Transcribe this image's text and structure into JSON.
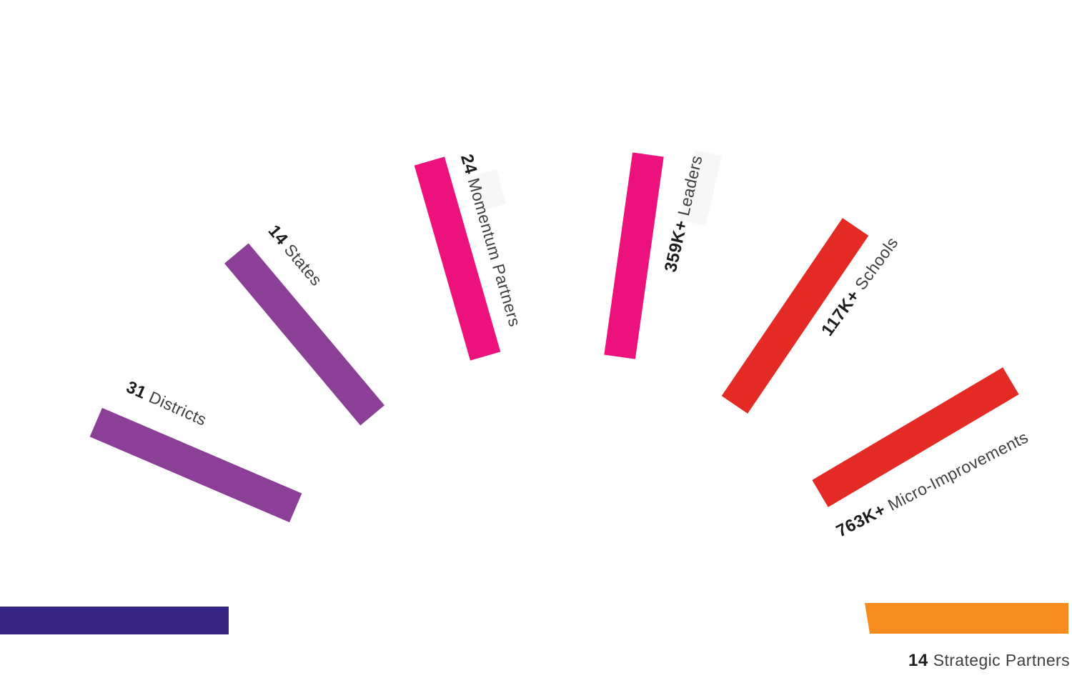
{
  "page": {
    "background": "#ffffff"
  },
  "chart_data": {
    "type": "bar",
    "layout": "radial-fan",
    "legend": "none",
    "axes": "none",
    "categories": [
      "",
      "Districts",
      "States",
      "Momentum Partners",
      "Leaders",
      "Schools",
      "Micro-Improvements",
      "Strategic Partners"
    ],
    "values": [
      "",
      "31",
      "14",
      "24",
      "359K+",
      "117K+",
      "763K+",
      "14"
    ],
    "colors": [
      "#362482",
      "#8C3F97",
      "#8C3F97",
      "#EC117D",
      "#EC117D",
      "#E32A25",
      "#E32A25",
      "#F68B1E"
    ],
    "text_colors": {
      "value": "#1d1d1b",
      "label": "#404041"
    }
  }
}
